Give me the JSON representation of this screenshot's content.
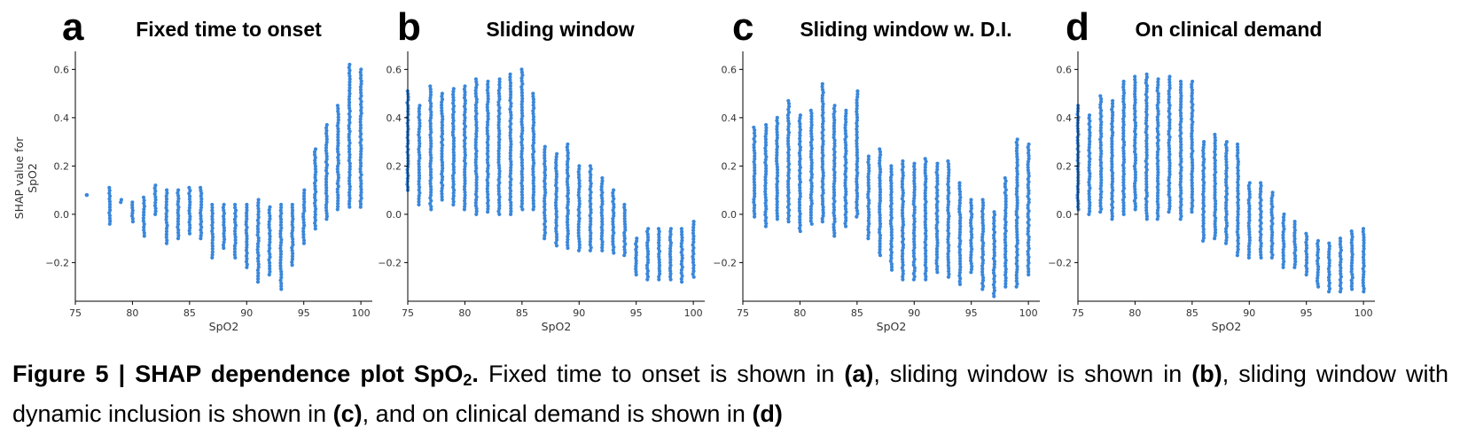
{
  "figure": {
    "caption_prefix": "Figure 5 | SHAP dependence plot SpO",
    "caption_sub": "2",
    "caption_dot": ".",
    "caption_t1": " Fixed time to onset is shown in ",
    "caption_a": "(a)",
    "caption_t2": ", sliding window is shown in ",
    "caption_b": "(b)",
    "caption_t3": ", sliding window with dynamic inclusion is shown in ",
    "caption_c": "(c)",
    "caption_t4": ", and on clinical demand is shown in ",
    "caption_d": "(d)",
    "point_color": "#3a87db"
  },
  "chart_data": [
    {
      "type": "scatter",
      "panel_letter": "a",
      "title": "Fixed time to onset",
      "xlabel": "SpO2",
      "ylabel": "SHAP value for SpO2",
      "xlim": [
        75,
        101
      ],
      "ylim": [
        -0.36,
        0.66
      ],
      "xticks": [
        75,
        80,
        85,
        90,
        95,
        100
      ],
      "yticks": [
        -0.2,
        0.0,
        0.2,
        0.4,
        0.6
      ],
      "ytick_labels": [
        "−0.2",
        "0.0",
        "0.2",
        "0.4",
        "0.6"
      ],
      "grid": false,
      "columns": [
        {
          "x": 76,
          "min": 0.08,
          "max": 0.08
        },
        {
          "x": 78,
          "min": -0.04,
          "max": 0.11
        },
        {
          "x": 79,
          "min": 0.05,
          "max": 0.06
        },
        {
          "x": 80,
          "min": -0.03,
          "max": 0.05
        },
        {
          "x": 81,
          "min": -0.09,
          "max": 0.07
        },
        {
          "x": 82,
          "min": 0.0,
          "max": 0.12
        },
        {
          "x": 83,
          "min": -0.12,
          "max": 0.1
        },
        {
          "x": 84,
          "min": -0.1,
          "max": 0.1
        },
        {
          "x": 85,
          "min": -0.08,
          "max": 0.11
        },
        {
          "x": 86,
          "min": -0.1,
          "max": 0.11
        },
        {
          "x": 87,
          "min": -0.18,
          "max": 0.04
        },
        {
          "x": 88,
          "min": -0.14,
          "max": 0.04
        },
        {
          "x": 89,
          "min": -0.18,
          "max": 0.04
        },
        {
          "x": 90,
          "min": -0.22,
          "max": 0.04
        },
        {
          "x": 91,
          "min": -0.28,
          "max": 0.06
        },
        {
          "x": 92,
          "min": -0.25,
          "max": 0.03
        },
        {
          "x": 93,
          "min": -0.31,
          "max": 0.04
        },
        {
          "x": 94,
          "min": -0.21,
          "max": 0.04
        },
        {
          "x": 95,
          "min": -0.12,
          "max": 0.1
        },
        {
          "x": 96,
          "min": -0.06,
          "max": 0.27
        },
        {
          "x": 97,
          "min": -0.02,
          "max": 0.37
        },
        {
          "x": 98,
          "min": 0.02,
          "max": 0.45
        },
        {
          "x": 99,
          "min": 0.03,
          "max": 0.62
        },
        {
          "x": 100,
          "min": 0.03,
          "max": 0.6
        }
      ]
    },
    {
      "type": "scatter",
      "panel_letter": "b",
      "title": "Sliding window",
      "xlabel": "SpO2",
      "ylabel": "",
      "xlim": [
        75,
        101
      ],
      "ylim": [
        -0.36,
        0.66
      ],
      "xticks": [
        75,
        80,
        85,
        90,
        95,
        100
      ],
      "yticks": [
        -0.2,
        0.0,
        0.2,
        0.4,
        0.6
      ],
      "ytick_labels": [
        "−0.2",
        "0.0",
        "0.2",
        "0.4",
        "0.6"
      ],
      "grid": false,
      "columns": [
        {
          "x": 75,
          "min": 0.1,
          "max": 0.51
        },
        {
          "x": 76,
          "min": 0.04,
          "max": 0.45
        },
        {
          "x": 77,
          "min": 0.02,
          "max": 0.53
        },
        {
          "x": 78,
          "min": 0.06,
          "max": 0.5
        },
        {
          "x": 79,
          "min": 0.04,
          "max": 0.52
        },
        {
          "x": 80,
          "min": 0.02,
          "max": 0.53
        },
        {
          "x": 81,
          "min": 0.0,
          "max": 0.56
        },
        {
          "x": 82,
          "min": 0.01,
          "max": 0.55
        },
        {
          "x": 83,
          "min": 0.0,
          "max": 0.56
        },
        {
          "x": 84,
          "min": 0.0,
          "max": 0.58
        },
        {
          "x": 85,
          "min": 0.02,
          "max": 0.6
        },
        {
          "x": 86,
          "min": 0.02,
          "max": 0.5
        },
        {
          "x": 87,
          "min": -0.1,
          "max": 0.28
        },
        {
          "x": 88,
          "min": -0.13,
          "max": 0.25
        },
        {
          "x": 89,
          "min": -0.14,
          "max": 0.29
        },
        {
          "x": 90,
          "min": -0.15,
          "max": 0.2
        },
        {
          "x": 91,
          "min": -0.15,
          "max": 0.2
        },
        {
          "x": 92,
          "min": -0.15,
          "max": 0.15
        },
        {
          "x": 93,
          "min": -0.16,
          "max": 0.1
        },
        {
          "x": 94,
          "min": -0.17,
          "max": 0.04
        },
        {
          "x": 95,
          "min": -0.25,
          "max": -0.1
        },
        {
          "x": 96,
          "min": -0.27,
          "max": -0.06
        },
        {
          "x": 97,
          "min": -0.27,
          "max": -0.06
        },
        {
          "x": 98,
          "min": -0.27,
          "max": -0.06
        },
        {
          "x": 99,
          "min": -0.28,
          "max": -0.06
        },
        {
          "x": 100,
          "min": -0.26,
          "max": -0.03
        }
      ]
    },
    {
      "type": "scatter",
      "panel_letter": "c",
      "title": "Sliding window w. D.I.",
      "xlabel": "SpO2",
      "ylabel": "",
      "xlim": [
        75,
        101
      ],
      "ylim": [
        -0.36,
        0.66
      ],
      "xticks": [
        75,
        80,
        85,
        90,
        95,
        100
      ],
      "yticks": [
        -0.2,
        0.0,
        0.2,
        0.4,
        0.6
      ],
      "ytick_labels": [
        "−0.2",
        "0.0",
        "0.2",
        "0.4",
        "0.6"
      ],
      "grid": false,
      "columns": [
        {
          "x": 76,
          "min": -0.01,
          "max": 0.36
        },
        {
          "x": 77,
          "min": -0.05,
          "max": 0.37
        },
        {
          "x": 78,
          "min": -0.02,
          "max": 0.4
        },
        {
          "x": 79,
          "min": -0.03,
          "max": 0.47
        },
        {
          "x": 80,
          "min": -0.07,
          "max": 0.41
        },
        {
          "x": 81,
          "min": -0.04,
          "max": 0.43
        },
        {
          "x": 82,
          "min": -0.03,
          "max": 0.54
        },
        {
          "x": 83,
          "min": -0.09,
          "max": 0.45
        },
        {
          "x": 84,
          "min": -0.05,
          "max": 0.43
        },
        {
          "x": 85,
          "min": -0.01,
          "max": 0.51
        },
        {
          "x": 86,
          "min": -0.1,
          "max": 0.24
        },
        {
          "x": 87,
          "min": -0.17,
          "max": 0.27
        },
        {
          "x": 88,
          "min": -0.23,
          "max": 0.2
        },
        {
          "x": 89,
          "min": -0.27,
          "max": 0.22
        },
        {
          "x": 90,
          "min": -0.27,
          "max": 0.21
        },
        {
          "x": 91,
          "min": -0.27,
          "max": 0.23
        },
        {
          "x": 92,
          "min": -0.24,
          "max": 0.21
        },
        {
          "x": 93,
          "min": -0.26,
          "max": 0.22
        },
        {
          "x": 94,
          "min": -0.29,
          "max": 0.13
        },
        {
          "x": 95,
          "min": -0.24,
          "max": 0.06
        },
        {
          "x": 96,
          "min": -0.31,
          "max": 0.06
        },
        {
          "x": 97,
          "min": -0.34,
          "max": 0.01
        },
        {
          "x": 98,
          "min": -0.3,
          "max": 0.15
        },
        {
          "x": 99,
          "min": -0.3,
          "max": 0.31
        },
        {
          "x": 100,
          "min": -0.25,
          "max": 0.29
        }
      ]
    },
    {
      "type": "scatter",
      "panel_letter": "d",
      "title": "On clinical demand",
      "xlabel": "SpO2",
      "ylabel": "",
      "xlim": [
        75,
        101
      ],
      "ylim": [
        -0.36,
        0.66
      ],
      "xticks": [
        75,
        80,
        85,
        90,
        95,
        100
      ],
      "yticks": [
        -0.2,
        0.0,
        0.2,
        0.4,
        0.6
      ],
      "ytick_labels": [
        "−0.2",
        "0.0",
        "0.2",
        "0.4",
        "0.6"
      ],
      "grid": false,
      "columns": [
        {
          "x": 75,
          "min": 0.02,
          "max": 0.45
        },
        {
          "x": 76,
          "min": 0.0,
          "max": 0.41
        },
        {
          "x": 77,
          "min": 0.01,
          "max": 0.49
        },
        {
          "x": 78,
          "min": -0.02,
          "max": 0.47
        },
        {
          "x": 79,
          "min": 0.0,
          "max": 0.55
        },
        {
          "x": 80,
          "min": 0.02,
          "max": 0.57
        },
        {
          "x": 81,
          "min": -0.02,
          "max": 0.58
        },
        {
          "x": 82,
          "min": -0.02,
          "max": 0.56
        },
        {
          "x": 83,
          "min": 0.01,
          "max": 0.57
        },
        {
          "x": 84,
          "min": -0.02,
          "max": 0.55
        },
        {
          "x": 85,
          "min": 0.01,
          "max": 0.55
        },
        {
          "x": 86,
          "min": -0.11,
          "max": 0.3
        },
        {
          "x": 87,
          "min": -0.1,
          "max": 0.33
        },
        {
          "x": 88,
          "min": -0.12,
          "max": 0.3
        },
        {
          "x": 89,
          "min": -0.17,
          "max": 0.29
        },
        {
          "x": 90,
          "min": -0.18,
          "max": 0.13
        },
        {
          "x": 91,
          "min": -0.18,
          "max": 0.13
        },
        {
          "x": 92,
          "min": -0.18,
          "max": 0.09
        },
        {
          "x": 93,
          "min": -0.22,
          "max": 0.0
        },
        {
          "x": 94,
          "min": -0.22,
          "max": -0.03
        },
        {
          "x": 95,
          "min": -0.25,
          "max": -0.08
        },
        {
          "x": 96,
          "min": -0.3,
          "max": -0.11
        },
        {
          "x": 97,
          "min": -0.32,
          "max": -0.12
        },
        {
          "x": 98,
          "min": -0.32,
          "max": -0.1
        },
        {
          "x": 99,
          "min": -0.31,
          "max": -0.07
        },
        {
          "x": 100,
          "min": -0.32,
          "max": -0.06
        }
      ]
    }
  ]
}
